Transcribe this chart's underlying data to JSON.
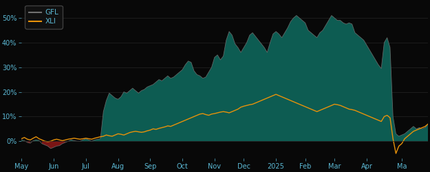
{
  "background_color": "#080808",
  "plot_bg_color": "#080808",
  "gfl_color": "#707070",
  "gfl_fill_color": "#0d5c52",
  "gfl_fill_negative_color": "#7a1515",
  "xli_color": "#E8920A",
  "x_labels": [
    "May",
    "Jun",
    "Jul",
    "Aug",
    "Sep",
    "Oct",
    "Nov",
    "Dec",
    "2025",
    "Feb",
    "Mar",
    "Apr",
    "Ma"
  ],
  "ylim": [
    -0.07,
    0.565
  ],
  "y_ticks": [
    0.0,
    0.1,
    0.2,
    0.3,
    0.4,
    0.5
  ],
  "gfl_data": [
    0.005,
    0.002,
    -0.005,
    -0.008,
    0.002,
    0.005,
    0.003,
    -0.01,
    -0.015,
    -0.02,
    -0.03,
    -0.025,
    -0.02,
    -0.018,
    -0.01,
    -0.005,
    0.0,
    0.005,
    0.002,
    0.0,
    0.0,
    0.005,
    0.01,
    0.005,
    0.0,
    0.005,
    0.008,
    0.01,
    0.12,
    0.165,
    0.195,
    0.185,
    0.175,
    0.17,
    0.18,
    0.2,
    0.195,
    0.205,
    0.215,
    0.205,
    0.195,
    0.205,
    0.21,
    0.22,
    0.225,
    0.23,
    0.24,
    0.25,
    0.245,
    0.255,
    0.265,
    0.255,
    0.26,
    0.27,
    0.28,
    0.29,
    0.31,
    0.325,
    0.32,
    0.285,
    0.27,
    0.265,
    0.255,
    0.26,
    0.28,
    0.3,
    0.34,
    0.35,
    0.33,
    0.345,
    0.41,
    0.445,
    0.43,
    0.395,
    0.38,
    0.36,
    0.38,
    0.4,
    0.43,
    0.44,
    0.425,
    0.41,
    0.395,
    0.38,
    0.36,
    0.4,
    0.435,
    0.445,
    0.435,
    0.42,
    0.44,
    0.46,
    0.485,
    0.5,
    0.51,
    0.5,
    0.49,
    0.48,
    0.45,
    0.44,
    0.43,
    0.42,
    0.44,
    0.45,
    0.47,
    0.49,
    0.51,
    0.5,
    0.49,
    0.49,
    0.48,
    0.475,
    0.48,
    0.475,
    0.44,
    0.43,
    0.42,
    0.41,
    0.39,
    0.37,
    0.35,
    0.33,
    0.31,
    0.295,
    0.4,
    0.42,
    0.38,
    0.1,
    0.03,
    0.02,
    0.025,
    0.03,
    0.04,
    0.05,
    0.06,
    0.05,
    0.055,
    0.05,
    0.055,
    0.07
  ],
  "xli_data": [
    0.01,
    0.015,
    0.008,
    0.005,
    0.012,
    0.018,
    0.01,
    0.005,
    0.0,
    -0.002,
    0.0,
    0.005,
    0.008,
    0.005,
    0.002,
    0.005,
    0.008,
    0.01,
    0.012,
    0.01,
    0.008,
    0.01,
    0.012,
    0.01,
    0.008,
    0.012,
    0.015,
    0.018,
    0.02,
    0.025,
    0.022,
    0.02,
    0.025,
    0.03,
    0.028,
    0.025,
    0.03,
    0.035,
    0.038,
    0.04,
    0.038,
    0.036,
    0.038,
    0.042,
    0.045,
    0.05,
    0.048,
    0.052,
    0.055,
    0.058,
    0.062,
    0.06,
    0.065,
    0.07,
    0.075,
    0.08,
    0.085,
    0.09,
    0.095,
    0.1,
    0.105,
    0.11,
    0.112,
    0.108,
    0.105,
    0.11,
    0.112,
    0.115,
    0.118,
    0.12,
    0.118,
    0.115,
    0.12,
    0.125,
    0.13,
    0.138,
    0.142,
    0.145,
    0.148,
    0.15,
    0.155,
    0.16,
    0.165,
    0.17,
    0.175,
    0.18,
    0.185,
    0.19,
    0.185,
    0.18,
    0.175,
    0.17,
    0.165,
    0.16,
    0.155,
    0.15,
    0.145,
    0.14,
    0.135,
    0.13,
    0.125,
    0.12,
    0.125,
    0.13,
    0.135,
    0.14,
    0.145,
    0.15,
    0.148,
    0.145,
    0.14,
    0.135,
    0.13,
    0.128,
    0.125,
    0.12,
    0.115,
    0.11,
    0.105,
    0.1,
    0.095,
    0.09,
    0.085,
    0.08,
    0.1,
    0.105,
    0.095,
    0.01,
    -0.05,
    -0.02,
    -0.01,
    0.01,
    0.02,
    0.03,
    0.04,
    0.045,
    0.05,
    0.055,
    0.06,
    0.07
  ],
  "n_points": 140,
  "x_tick_positions": [
    0,
    11,
    22,
    33,
    44,
    55,
    66,
    76,
    87,
    97,
    107,
    118,
    130
  ],
  "grid_color": "#252525",
  "tick_label_color": "#5BB8D4",
  "legend_edge_color": "#444444"
}
